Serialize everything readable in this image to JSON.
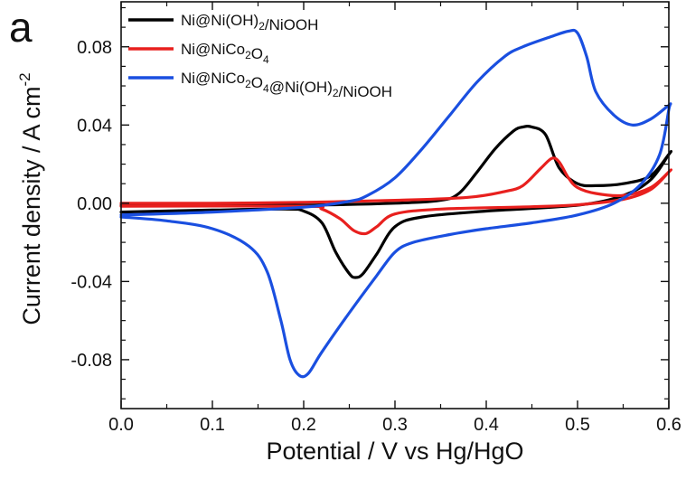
{
  "panel_label": "a",
  "chart_data": {
    "type": "line",
    "xlabel": "Potential / V vs Hg/HgO",
    "ylabel": "Current density / A cm",
    "ylabel_sup": "-2",
    "xlim": [
      0.0,
      0.6
    ],
    "ylim": [
      -0.105,
      0.103
    ],
    "x_ticks": [
      0.0,
      0.1,
      0.2,
      0.3,
      0.4,
      0.5,
      0.6
    ],
    "x_tick_labels": [
      "0.0",
      "0.1",
      "0.2",
      "0.3",
      "0.4",
      "0.5",
      "0.6"
    ],
    "y_ticks": [
      -0.08,
      -0.04,
      0.0,
      0.04,
      0.08
    ],
    "y_tick_labels": [
      "-0.08",
      "-0.04",
      "0.00",
      "0.04",
      "0.08"
    ],
    "grid": false,
    "legend_position": "top-left",
    "series": [
      {
        "name": "Ni@Ni(OH)2/NiOOH",
        "legend_parts": [
          [
            "Ni@Ni(OH)",
            ""
          ],
          [
            "2",
            "sub"
          ],
          [
            "/NiOOH",
            ""
          ]
        ],
        "color": "#000000",
        "points": [
          [
            0.0,
            -0.0045
          ],
          [
            0.1,
            -0.0035
          ],
          [
            0.18,
            -0.003
          ],
          [
            0.2,
            -0.004
          ],
          [
            0.22,
            -0.01
          ],
          [
            0.235,
            -0.025
          ],
          [
            0.25,
            -0.036
          ],
          [
            0.257,
            -0.038
          ],
          [
            0.265,
            -0.036
          ],
          [
            0.28,
            -0.026
          ],
          [
            0.3,
            -0.012
          ],
          [
            0.33,
            -0.007
          ],
          [
            0.4,
            -0.004
          ],
          [
            0.5,
            -0.001
          ],
          [
            0.55,
            0.004
          ],
          [
            0.58,
            0.012
          ],
          [
            0.6,
            0.025
          ],
          [
            0.6,
            0.025
          ],
          [
            0.58,
            0.014
          ],
          [
            0.55,
            0.01
          ],
          [
            0.52,
            0.009
          ],
          [
            0.5,
            0.01
          ],
          [
            0.48,
            0.018
          ],
          [
            0.465,
            0.035
          ],
          [
            0.45,
            0.039
          ],
          [
            0.44,
            0.039
          ],
          [
            0.43,
            0.037
          ],
          [
            0.41,
            0.028
          ],
          [
            0.39,
            0.016
          ],
          [
            0.37,
            0.005
          ],
          [
            0.35,
            0.0015
          ],
          [
            0.3,
            0.0
          ],
          [
            0.2,
            -0.001
          ],
          [
            0.1,
            -0.001
          ],
          [
            0.0,
            -0.0012
          ]
        ]
      },
      {
        "name": "Ni@NiCo2O4",
        "legend_parts": [
          [
            "Ni@NiCo",
            ""
          ],
          [
            "2",
            "sub"
          ],
          [
            "O",
            ""
          ],
          [
            "4",
            "sub"
          ]
        ],
        "color": "#e8201e",
        "points": [
          [
            0.0,
            -0.0015
          ],
          [
            0.2,
            -0.0015
          ],
          [
            0.22,
            -0.003
          ],
          [
            0.24,
            -0.008
          ],
          [
            0.255,
            -0.014
          ],
          [
            0.268,
            -0.0155
          ],
          [
            0.28,
            -0.012
          ],
          [
            0.3,
            -0.0055
          ],
          [
            0.35,
            -0.003
          ],
          [
            0.45,
            -0.0018
          ],
          [
            0.5,
            -0.0008
          ],
          [
            0.55,
            0.002
          ],
          [
            0.58,
            0.007
          ],
          [
            0.6,
            0.016
          ],
          [
            0.6,
            0.016
          ],
          [
            0.58,
            0.008
          ],
          [
            0.55,
            0.004
          ],
          [
            0.52,
            0.005
          ],
          [
            0.5,
            0.008
          ],
          [
            0.49,
            0.013
          ],
          [
            0.48,
            0.021
          ],
          [
            0.472,
            0.023
          ],
          [
            0.46,
            0.018
          ],
          [
            0.44,
            0.009
          ],
          [
            0.42,
            0.006
          ],
          [
            0.38,
            0.003
          ],
          [
            0.3,
            0.0015
          ],
          [
            0.2,
            0.0005
          ],
          [
            0.1,
            0.0
          ],
          [
            0.0,
            0.0
          ]
        ]
      },
      {
        "name": "Ni@NiCo2O4@Ni(OH)2/NiOOH",
        "legend_parts": [
          [
            "Ni@NiCo",
            ""
          ],
          [
            "2",
            "sub"
          ],
          [
            "O",
            ""
          ],
          [
            "4",
            "sub"
          ],
          [
            "@Ni(OH)",
            ""
          ],
          [
            "2",
            "sub"
          ],
          [
            "/NiOOH",
            ""
          ]
        ],
        "color": "#1a4fe0",
        "points": [
          [
            0.0,
            -0.007
          ],
          [
            0.05,
            -0.009
          ],
          [
            0.1,
            -0.013
          ],
          [
            0.14,
            -0.022
          ],
          [
            0.16,
            -0.035
          ],
          [
            0.175,
            -0.06
          ],
          [
            0.185,
            -0.08
          ],
          [
            0.195,
            -0.088
          ],
          [
            0.205,
            -0.087
          ],
          [
            0.22,
            -0.076
          ],
          [
            0.25,
            -0.056
          ],
          [
            0.28,
            -0.037
          ],
          [
            0.3,
            -0.025
          ],
          [
            0.32,
            -0.02
          ],
          [
            0.36,
            -0.016
          ],
          [
            0.4,
            -0.013
          ],
          [
            0.45,
            -0.01
          ],
          [
            0.5,
            -0.006
          ],
          [
            0.54,
            0.0
          ],
          [
            0.57,
            0.01
          ],
          [
            0.59,
            0.025
          ],
          [
            0.6,
            0.048
          ],
          [
            0.6,
            0.05
          ],
          [
            0.58,
            0.043
          ],
          [
            0.56,
            0.04
          ],
          [
            0.54,
            0.045
          ],
          [
            0.52,
            0.057
          ],
          [
            0.51,
            0.075
          ],
          [
            0.5,
            0.087
          ],
          [
            0.49,
            0.088
          ],
          [
            0.47,
            0.085
          ],
          [
            0.44,
            0.08
          ],
          [
            0.42,
            0.075
          ],
          [
            0.39,
            0.062
          ],
          [
            0.36,
            0.045
          ],
          [
            0.33,
            0.028
          ],
          [
            0.3,
            0.013
          ],
          [
            0.27,
            0.004
          ],
          [
            0.25,
            0.001
          ],
          [
            0.2,
            -0.002
          ],
          [
            0.1,
            -0.0045
          ],
          [
            0.0,
            -0.006
          ]
        ]
      }
    ]
  }
}
